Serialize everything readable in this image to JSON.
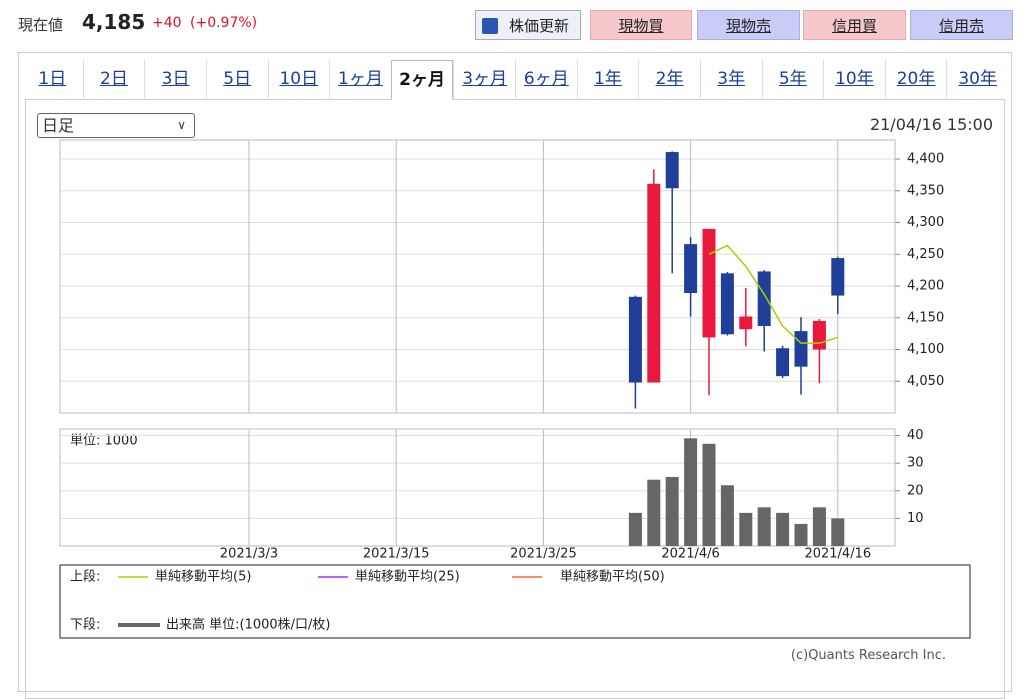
{
  "header": {
    "label": "現在値",
    "price": "4,185",
    "change": "+40",
    "change_pct": "(+0.97%)"
  },
  "buttons": [
    "株価更新",
    "現物買",
    "現物売",
    "信用買",
    "信用売"
  ],
  "tabs": [
    "1日",
    "2日",
    "3日",
    "5日",
    "10日",
    "1ヶ月",
    "2ヶ月",
    "3ヶ月",
    "6ヶ月",
    "1年",
    "2年",
    "3年",
    "5年",
    "10年",
    "20年",
    "30年"
  ],
  "period_select": "日足",
  "timestamp": "21/04/16 15:00",
  "chart_data": [
    {
      "type": "candlestick",
      "open": [
        null,
        null,
        null,
        null,
        null,
        null,
        null,
        null,
        null,
        null,
        null,
        null,
        null,
        null,
        null,
        null,
        null,
        null,
        null,
        null,
        null,
        4183,
        4048,
        4411,
        4266,
        4119,
        4220,
        4132,
        4223,
        4102,
        4129,
        4100,
        4244
      ],
      "high": [
        null,
        null,
        null,
        null,
        null,
        null,
        null,
        null,
        null,
        null,
        null,
        null,
        null,
        null,
        null,
        null,
        null,
        null,
        null,
        null,
        null,
        4185,
        4384,
        4412,
        4277,
        4290,
        4222,
        4197,
        4225,
        4106,
        4151,
        4148,
        4246
      ],
      "low": [
        null,
        null,
        null,
        null,
        null,
        null,
        null,
        null,
        null,
        null,
        null,
        null,
        null,
        null,
        null,
        null,
        null,
        null,
        null,
        null,
        null,
        4007,
        4048,
        4220,
        4152,
        4028,
        4122,
        4105,
        4097,
        4055,
        4029,
        4047,
        4156
      ],
      "close": [
        null,
        null,
        null,
        null,
        null,
        null,
        null,
        null,
        null,
        null,
        null,
        null,
        null,
        null,
        null,
        null,
        null,
        null,
        null,
        null,
        null,
        4048,
        4361,
        4354,
        4189,
        4290,
        4124,
        4152,
        4137,
        4058,
        4073,
        4145,
        4185
      ],
      "up_color": "#e8193c",
      "down_color": "#1f3f99",
      "series": [
        {
          "name": "単純移動平均(5)",
          "color": "#a8d000",
          "values": [
            null,
            null,
            null,
            null,
            null,
            null,
            null,
            null,
            null,
            null,
            null,
            null,
            null,
            null,
            null,
            null,
            null,
            null,
            null,
            null,
            null,
            null,
            null,
            null,
            null,
            4250,
            4264,
            4231,
            4187,
            4137,
            4110,
            4110,
            4119
          ]
        },
        {
          "name": "単純移動平均(25)",
          "color": "#9933ff",
          "values": [
            null,
            null,
            null,
            null,
            null,
            null,
            null,
            null,
            null,
            null,
            null,
            null,
            null,
            null,
            null,
            null,
            null,
            null,
            null,
            null,
            null,
            null,
            null,
            null,
            null,
            null,
            null,
            null,
            null,
            null,
            null,
            null,
            null
          ]
        },
        {
          "name": "単純移動平均(50)",
          "color": "#ff6633",
          "values": [
            null,
            null,
            null,
            null,
            null,
            null,
            null,
            null,
            null,
            null,
            null,
            null,
            null,
            null,
            null,
            null,
            null,
            null,
            null,
            null,
            null,
            null,
            null,
            null,
            null,
            null,
            null,
            null,
            null,
            null,
            null,
            null,
            null
          ]
        }
      ],
      "ylim": [
        4000,
        4430
      ],
      "yticks": [
        {
          "value": 4050,
          "label": "4,050"
        },
        {
          "value": 4100,
          "label": "4,100"
        },
        {
          "value": 4150,
          "label": "4,150"
        },
        {
          "value": 4200,
          "label": "4,200"
        },
        {
          "value": 4250,
          "label": "4,250"
        },
        {
          "value": 4300,
          "label": "4,300"
        },
        {
          "value": 4350,
          "label": "4,350"
        },
        {
          "value": 4400,
          "label": "4,400"
        }
      ],
      "grid": true
    },
    {
      "type": "bar",
      "unit_label": "単位: 1000",
      "categories": [
        "2021/3/3",
        null,
        null,
        null,
        null,
        null,
        null,
        null,
        "2021/3/15",
        null,
        null,
        null,
        null,
        null,
        null,
        null,
        "2021/3/25",
        null,
        null,
        null,
        null,
        null,
        null,
        null,
        "2021/4/6",
        null,
        null,
        null,
        null,
        null,
        null,
        null,
        "2021/4/16"
      ],
      "series": [
        {
          "name": "出来高 単位:(1000株/口/枚)",
          "color": "#666666",
          "values": [
            null,
            null,
            null,
            null,
            null,
            null,
            null,
            null,
            null,
            null,
            null,
            null,
            null,
            null,
            null,
            null,
            null,
            null,
            null,
            null,
            null,
            12,
            24,
            25,
            39,
            37,
            22,
            12,
            14,
            12,
            8,
            14,
            10
          ]
        }
      ],
      "ylim": [
        0,
        42
      ],
      "yticks": [
        10,
        20,
        30,
        40
      ],
      "grid": true
    }
  ],
  "legend": {
    "upper": "上段:",
    "lower": "下段:"
  },
  "copyright": "(c)Quants Research Inc."
}
